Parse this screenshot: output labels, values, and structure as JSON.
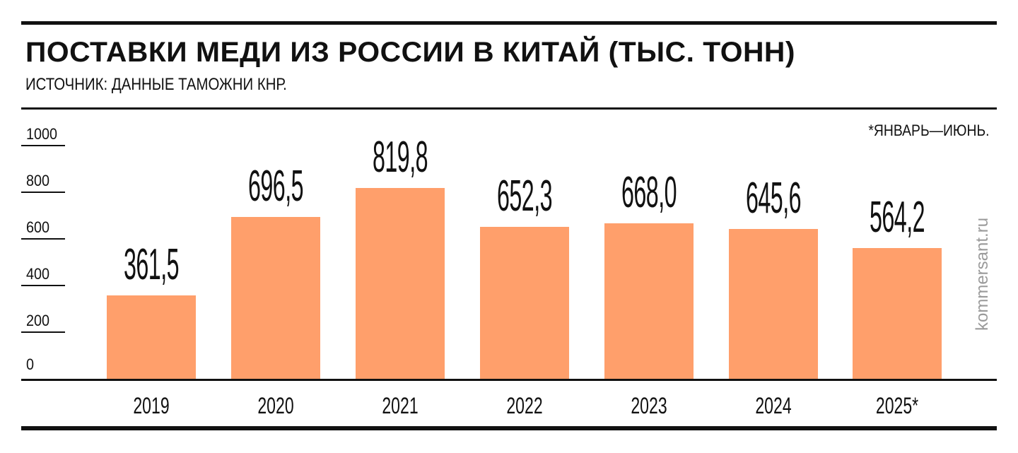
{
  "header": {
    "title": "ПОСТАВКИ МЕДИ ИЗ РОССИИ В КИТАЙ (ТЫС. ТОНН)",
    "subtitle": "ИСТОЧНИК: ДАННЫЕ ТАМОЖНИ КНР."
  },
  "footnote": "*ЯНВАРЬ—ИЮНЬ.",
  "watermark": "kommersant.ru",
  "colors": {
    "bar": "#FF9F6B",
    "rules": "#111111",
    "watermark": "#9a9a9a"
  },
  "y_axis": {
    "ticks": [
      "1000",
      "800",
      "600",
      "400",
      "200",
      "0"
    ]
  },
  "bars": [
    {
      "year": "2019",
      "value_label": "361,5"
    },
    {
      "year": "2020",
      "value_label": "696,5"
    },
    {
      "year": "2021",
      "value_label": "819,8"
    },
    {
      "year": "2022",
      "value_label": "652,3"
    },
    {
      "year": "2023",
      "value_label": "668,0"
    },
    {
      "year": "2024",
      "value_label": "645,6"
    },
    {
      "year": "2025*",
      "value_label": "564,2"
    }
  ],
  "chart_data": {
    "type": "bar",
    "title": "ПОСТАВКИ МЕДИ ИЗ РОССИИ В КИТАЙ (ТЫС. ТОНН)",
    "subtitle": "ИСТОЧНИК: ДАННЫЕ ТАМОЖНИ КНР.",
    "categories": [
      "2019",
      "2020",
      "2021",
      "2022",
      "2023",
      "2024",
      "2025*"
    ],
    "values": [
      361.5,
      696.5,
      819.8,
      652.3,
      668.0,
      645.6,
      564.2
    ],
    "value_labels": [
      "361,5",
      "696,5",
      "819,8",
      "652,3",
      "668,0",
      "645,6",
      "564,2"
    ],
    "xlabel": "",
    "ylabel": "тыс. тонн",
    "ylim": [
      0,
      1000
    ],
    "yticks": [
      0,
      200,
      400,
      600,
      800,
      1000
    ],
    "grid": false,
    "legend": null,
    "annotations": [
      "*ЯНВАРЬ—ИЮНЬ.",
      "kommersant.ru"
    ],
    "bar_color": "#FF9F6B"
  }
}
